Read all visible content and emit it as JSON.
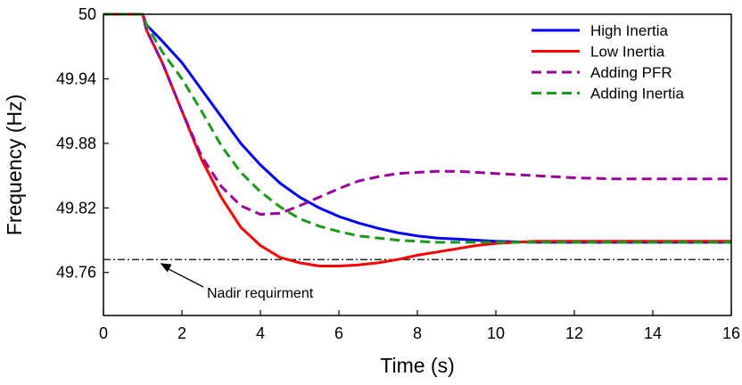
{
  "chart_data": {
    "type": "line",
    "title": "",
    "xlabel": "Time (s)",
    "ylabel": "Frequency (Hz)",
    "xlim": [
      0,
      16
    ],
    "ylim": [
      49.72,
      50
    ],
    "xticks": [
      "0",
      "2",
      "4",
      "6",
      "8",
      "10",
      "12",
      "14",
      "16"
    ],
    "yticks": [
      "49.76",
      "49.82",
      "49.88",
      "49.94",
      "50"
    ],
    "grid": false,
    "legend_position": "top-right",
    "series": [
      {
        "name": "High Inertia",
        "color": "#0000ff",
        "dash": "solid",
        "x": [
          0,
          1,
          1.1,
          1.5,
          2,
          2.5,
          3,
          3.5,
          4,
          4.5,
          5,
          5.5,
          6,
          6.5,
          7,
          7.5,
          8,
          8.5,
          9,
          9.5,
          10,
          11,
          12,
          13,
          14,
          15,
          16
        ],
        "y": [
          50,
          50,
          49.99,
          49.975,
          49.955,
          49.93,
          49.905,
          49.88,
          49.86,
          49.843,
          49.83,
          49.82,
          49.812,
          49.806,
          49.801,
          49.797,
          49.794,
          49.792,
          49.791,
          49.79,
          49.789,
          49.788,
          49.788,
          49.788,
          49.788,
          49.788,
          49.788
        ]
      },
      {
        "name": "Low Inertia",
        "color": "#ff0000",
        "dash": "solid",
        "x": [
          0,
          1,
          1.1,
          1.5,
          2,
          2.5,
          3,
          3.5,
          4,
          4.5,
          5,
          5.5,
          6,
          6.5,
          7,
          7.5,
          8,
          8.5,
          9,
          9.5,
          10,
          10.5,
          11,
          12,
          13,
          14,
          15,
          16
        ],
        "y": [
          50,
          50,
          49.985,
          49.955,
          49.91,
          49.865,
          49.83,
          49.802,
          49.785,
          49.774,
          49.769,
          49.766,
          49.766,
          49.767,
          49.769,
          49.772,
          49.776,
          49.779,
          49.782,
          49.785,
          49.787,
          49.788,
          49.789,
          49.789,
          49.789,
          49.789,
          49.789,
          49.789
        ]
      },
      {
        "name": "Adding PFR",
        "color": "#9b009b",
        "dash": "dashed",
        "x": [
          0,
          1,
          1.1,
          1.5,
          2,
          2.5,
          3,
          3.5,
          4,
          4.5,
          5,
          5.5,
          6,
          6.5,
          7,
          7.5,
          8,
          8.5,
          9,
          9.5,
          10,
          11,
          12,
          13,
          14,
          15,
          16
        ],
        "y": [
          50,
          50,
          49.985,
          49.955,
          49.91,
          49.868,
          49.84,
          49.822,
          49.814,
          49.815,
          49.822,
          49.83,
          49.838,
          49.845,
          49.849,
          49.852,
          49.853,
          49.854,
          49.854,
          49.853,
          49.852,
          49.85,
          49.848,
          49.847,
          49.847,
          49.847,
          49.847
        ]
      },
      {
        "name": "Adding Inertia",
        "color": "#1a9a1a",
        "dash": "dashed",
        "x": [
          0,
          1,
          1.1,
          1.5,
          2,
          2.5,
          3,
          3.5,
          4,
          4.5,
          5,
          5.5,
          6,
          6.5,
          7,
          7.5,
          8,
          8.5,
          9,
          9.5,
          10,
          11,
          12,
          13,
          14,
          15,
          16
        ],
        "y": [
          50,
          50,
          49.99,
          49.965,
          49.94,
          49.91,
          49.878,
          49.853,
          49.835,
          49.821,
          49.81,
          49.803,
          49.798,
          49.794,
          49.792,
          49.79,
          49.789,
          49.788,
          49.788,
          49.788,
          49.788,
          49.788,
          49.788,
          49.788,
          49.788,
          49.788,
          49.788
        ]
      }
    ],
    "reference_line": {
      "y": 49.772,
      "style": "dash-dot",
      "color": "#000000"
    },
    "annotations": [
      {
        "text": "Nadir requirment",
        "arrow_to": [
          1.4,
          49.772
        ]
      }
    ]
  }
}
